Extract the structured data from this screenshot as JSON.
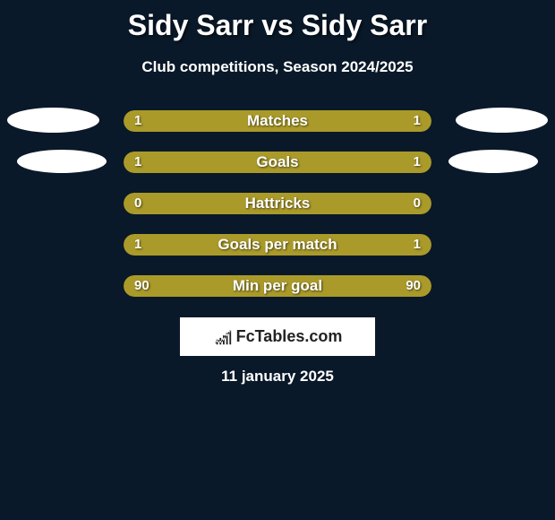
{
  "header": {
    "title": "Sidy Sarr vs Sidy Sarr",
    "subtitle": "Club competitions, Season 2024/2025"
  },
  "chart": {
    "background_color": "#0a1929",
    "bar_color": "#aa9a2a",
    "text_color": "#ffffff",
    "ellipse_color": "#ffffff",
    "rows": [
      {
        "label": "Matches",
        "left_value": "1",
        "right_value": "1",
        "left_pct": 50,
        "right_pct": 50,
        "show_ellipse_left": true,
        "show_ellipse_right": true,
        "ellipse_class_left": "ellipse-left-1",
        "ellipse_class_right": "ellipse-right-1"
      },
      {
        "label": "Goals",
        "left_value": "1",
        "right_value": "1",
        "left_pct": 50,
        "right_pct": 50,
        "show_ellipse_left": true,
        "show_ellipse_right": true,
        "ellipse_class_left": "ellipse-left-2",
        "ellipse_class_right": "ellipse-right-2"
      },
      {
        "label": "Hattricks",
        "left_value": "0",
        "right_value": "0",
        "left_pct": 50,
        "right_pct": 50,
        "show_ellipse_left": false,
        "show_ellipse_right": false
      },
      {
        "label": "Goals per match",
        "left_value": "1",
        "right_value": "1",
        "left_pct": 50,
        "right_pct": 50,
        "show_ellipse_left": false,
        "show_ellipse_right": false
      },
      {
        "label": "Min per goal",
        "left_value": "90",
        "right_value": "90",
        "left_pct": 50,
        "right_pct": 50,
        "show_ellipse_left": false,
        "show_ellipse_right": false
      }
    ]
  },
  "branding": {
    "logo_text": "FcTables.com"
  },
  "footer": {
    "date": "11 january 2025"
  }
}
